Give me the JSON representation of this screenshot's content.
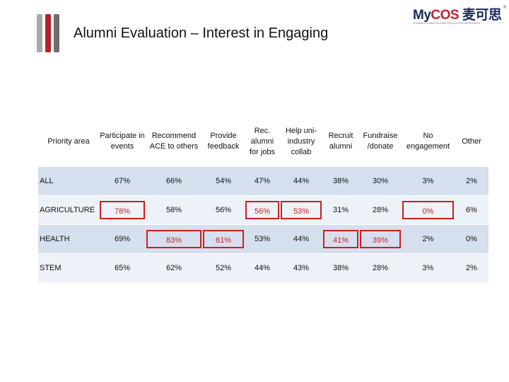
{
  "title": "Alumni Evaluation – Interest in Engaging",
  "logo": {
    "text_my": "My",
    "text_cos": "COS",
    "text_cn": "麦可思",
    "reg": "®",
    "tagline": "LEADING CHINA HIGHER EDUCATION RESEARCH"
  },
  "table": {
    "headers": [
      "Priority area",
      "Participate in events",
      "Recommend ACE to others",
      "Provide feedback",
      "Rec. alumni for jobs",
      "Help uni-industry collab",
      "Recruit alumni",
      "Fundraise /donate",
      "No engagement",
      "Other"
    ],
    "rows": [
      {
        "label": "ALL",
        "values": [
          "67%",
          "66%",
          "54%",
          "47%",
          "44%",
          "38%",
          "30%",
          "3%",
          "2%"
        ],
        "highlight": [
          false,
          false,
          false,
          false,
          false,
          false,
          false,
          false,
          false
        ]
      },
      {
        "label": "AGRICULTURE",
        "values": [
          "78%",
          "58%",
          "56%",
          "56%",
          "53%",
          "31%",
          "28%",
          "0%",
          "6%"
        ],
        "highlight": [
          true,
          false,
          false,
          true,
          true,
          false,
          false,
          true,
          false
        ]
      },
      {
        "label": "HEALTH",
        "values": [
          "69%",
          "83%",
          "61%",
          "53%",
          "44%",
          "41%",
          "39%",
          "2%",
          "0%"
        ],
        "highlight": [
          false,
          true,
          true,
          false,
          false,
          true,
          true,
          false,
          false
        ]
      },
      {
        "label": "STEM",
        "values": [
          "65%",
          "62%",
          "52%",
          "44%",
          "43%",
          "38%",
          "28%",
          "3%",
          "2%"
        ],
        "highlight": [
          false,
          false,
          false,
          false,
          false,
          false,
          false,
          false,
          false
        ]
      }
    ]
  },
  "colors": {
    "row_dark": "#d6dfee",
    "row_light": "#edf1f8",
    "highlight": "#cc1f1f"
  }
}
